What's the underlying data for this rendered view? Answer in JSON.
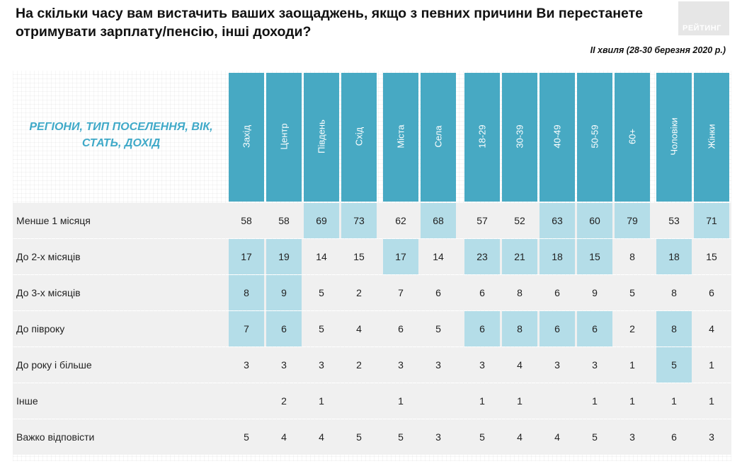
{
  "title": "На скільки часу вам вистачить ваших заощаджень, якщо з певних причини Ви перестанете отримувати зарплату/пенсію, інші доходи?",
  "logo_text": "РЕЙТИНГ",
  "wave_label": "II хвиля (28-30 березня 2020 р.)",
  "row_header": "РЕГІОНИ, ТИП ПОСЕЛЕННЯ, ВІК, СТАТЬ, ДОХІД",
  "colors": {
    "header_bg": "#47a9c3",
    "highlight": "#b4dde8",
    "accent_text": "#3fa9c8"
  },
  "columns": [
    "Захід",
    "Центр",
    "Південь",
    "Схід",
    "Міста",
    "Села",
    "18-29",
    "30-39",
    "40-49",
    "50-59",
    "60+",
    "Чоловіки",
    "Жінки"
  ],
  "rows": [
    {
      "label": "Менше 1 місяця",
      "values": [
        "58",
        "58",
        "69",
        "73",
        "62",
        "68",
        "57",
        "52",
        "63",
        "60",
        "79",
        "53",
        "71"
      ],
      "highlight": [
        false,
        false,
        true,
        true,
        false,
        true,
        false,
        false,
        true,
        true,
        true,
        false,
        true
      ]
    },
    {
      "label": "До 2-х місяців",
      "values": [
        "17",
        "19",
        "14",
        "15",
        "17",
        "14",
        "23",
        "21",
        "18",
        "15",
        "8",
        "18",
        "15"
      ],
      "highlight": [
        true,
        true,
        false,
        false,
        true,
        false,
        true,
        true,
        true,
        true,
        false,
        true,
        false
      ]
    },
    {
      "label": "До 3-х місяців",
      "values": [
        "8",
        "9",
        "5",
        "2",
        "7",
        "6",
        "6",
        "8",
        "6",
        "9",
        "5",
        "8",
        "6"
      ],
      "highlight": [
        true,
        true,
        false,
        false,
        false,
        false,
        false,
        false,
        false,
        false,
        false,
        false,
        false
      ]
    },
    {
      "label": "До півроку",
      "values": [
        "7",
        "6",
        "5",
        "4",
        "6",
        "5",
        "6",
        "8",
        "6",
        "6",
        "2",
        "8",
        "4"
      ],
      "highlight": [
        true,
        true,
        false,
        false,
        false,
        false,
        true,
        true,
        true,
        true,
        false,
        true,
        false
      ]
    },
    {
      "label": "До року і більше",
      "values": [
        "3",
        "3",
        "3",
        "2",
        "3",
        "3",
        "3",
        "4",
        "3",
        "3",
        "1",
        "5",
        "1"
      ],
      "highlight": [
        false,
        false,
        false,
        false,
        false,
        false,
        false,
        false,
        false,
        false,
        false,
        true,
        false
      ]
    },
    {
      "label": "Інше",
      "values": [
        "",
        "2",
        "1",
        "",
        "1",
        "",
        "1",
        "1",
        "",
        "1",
        "1",
        "1",
        "1"
      ],
      "highlight": [
        false,
        false,
        false,
        false,
        false,
        false,
        false,
        false,
        false,
        false,
        false,
        false,
        false
      ]
    },
    {
      "label": "Важко відповісти",
      "values": [
        "5",
        "4",
        "4",
        "5",
        "5",
        "3",
        "5",
        "4",
        "4",
        "5",
        "3",
        "6",
        "3"
      ],
      "highlight": [
        false,
        false,
        false,
        false,
        false,
        false,
        false,
        false,
        false,
        false,
        false,
        false,
        false
      ]
    }
  ]
}
